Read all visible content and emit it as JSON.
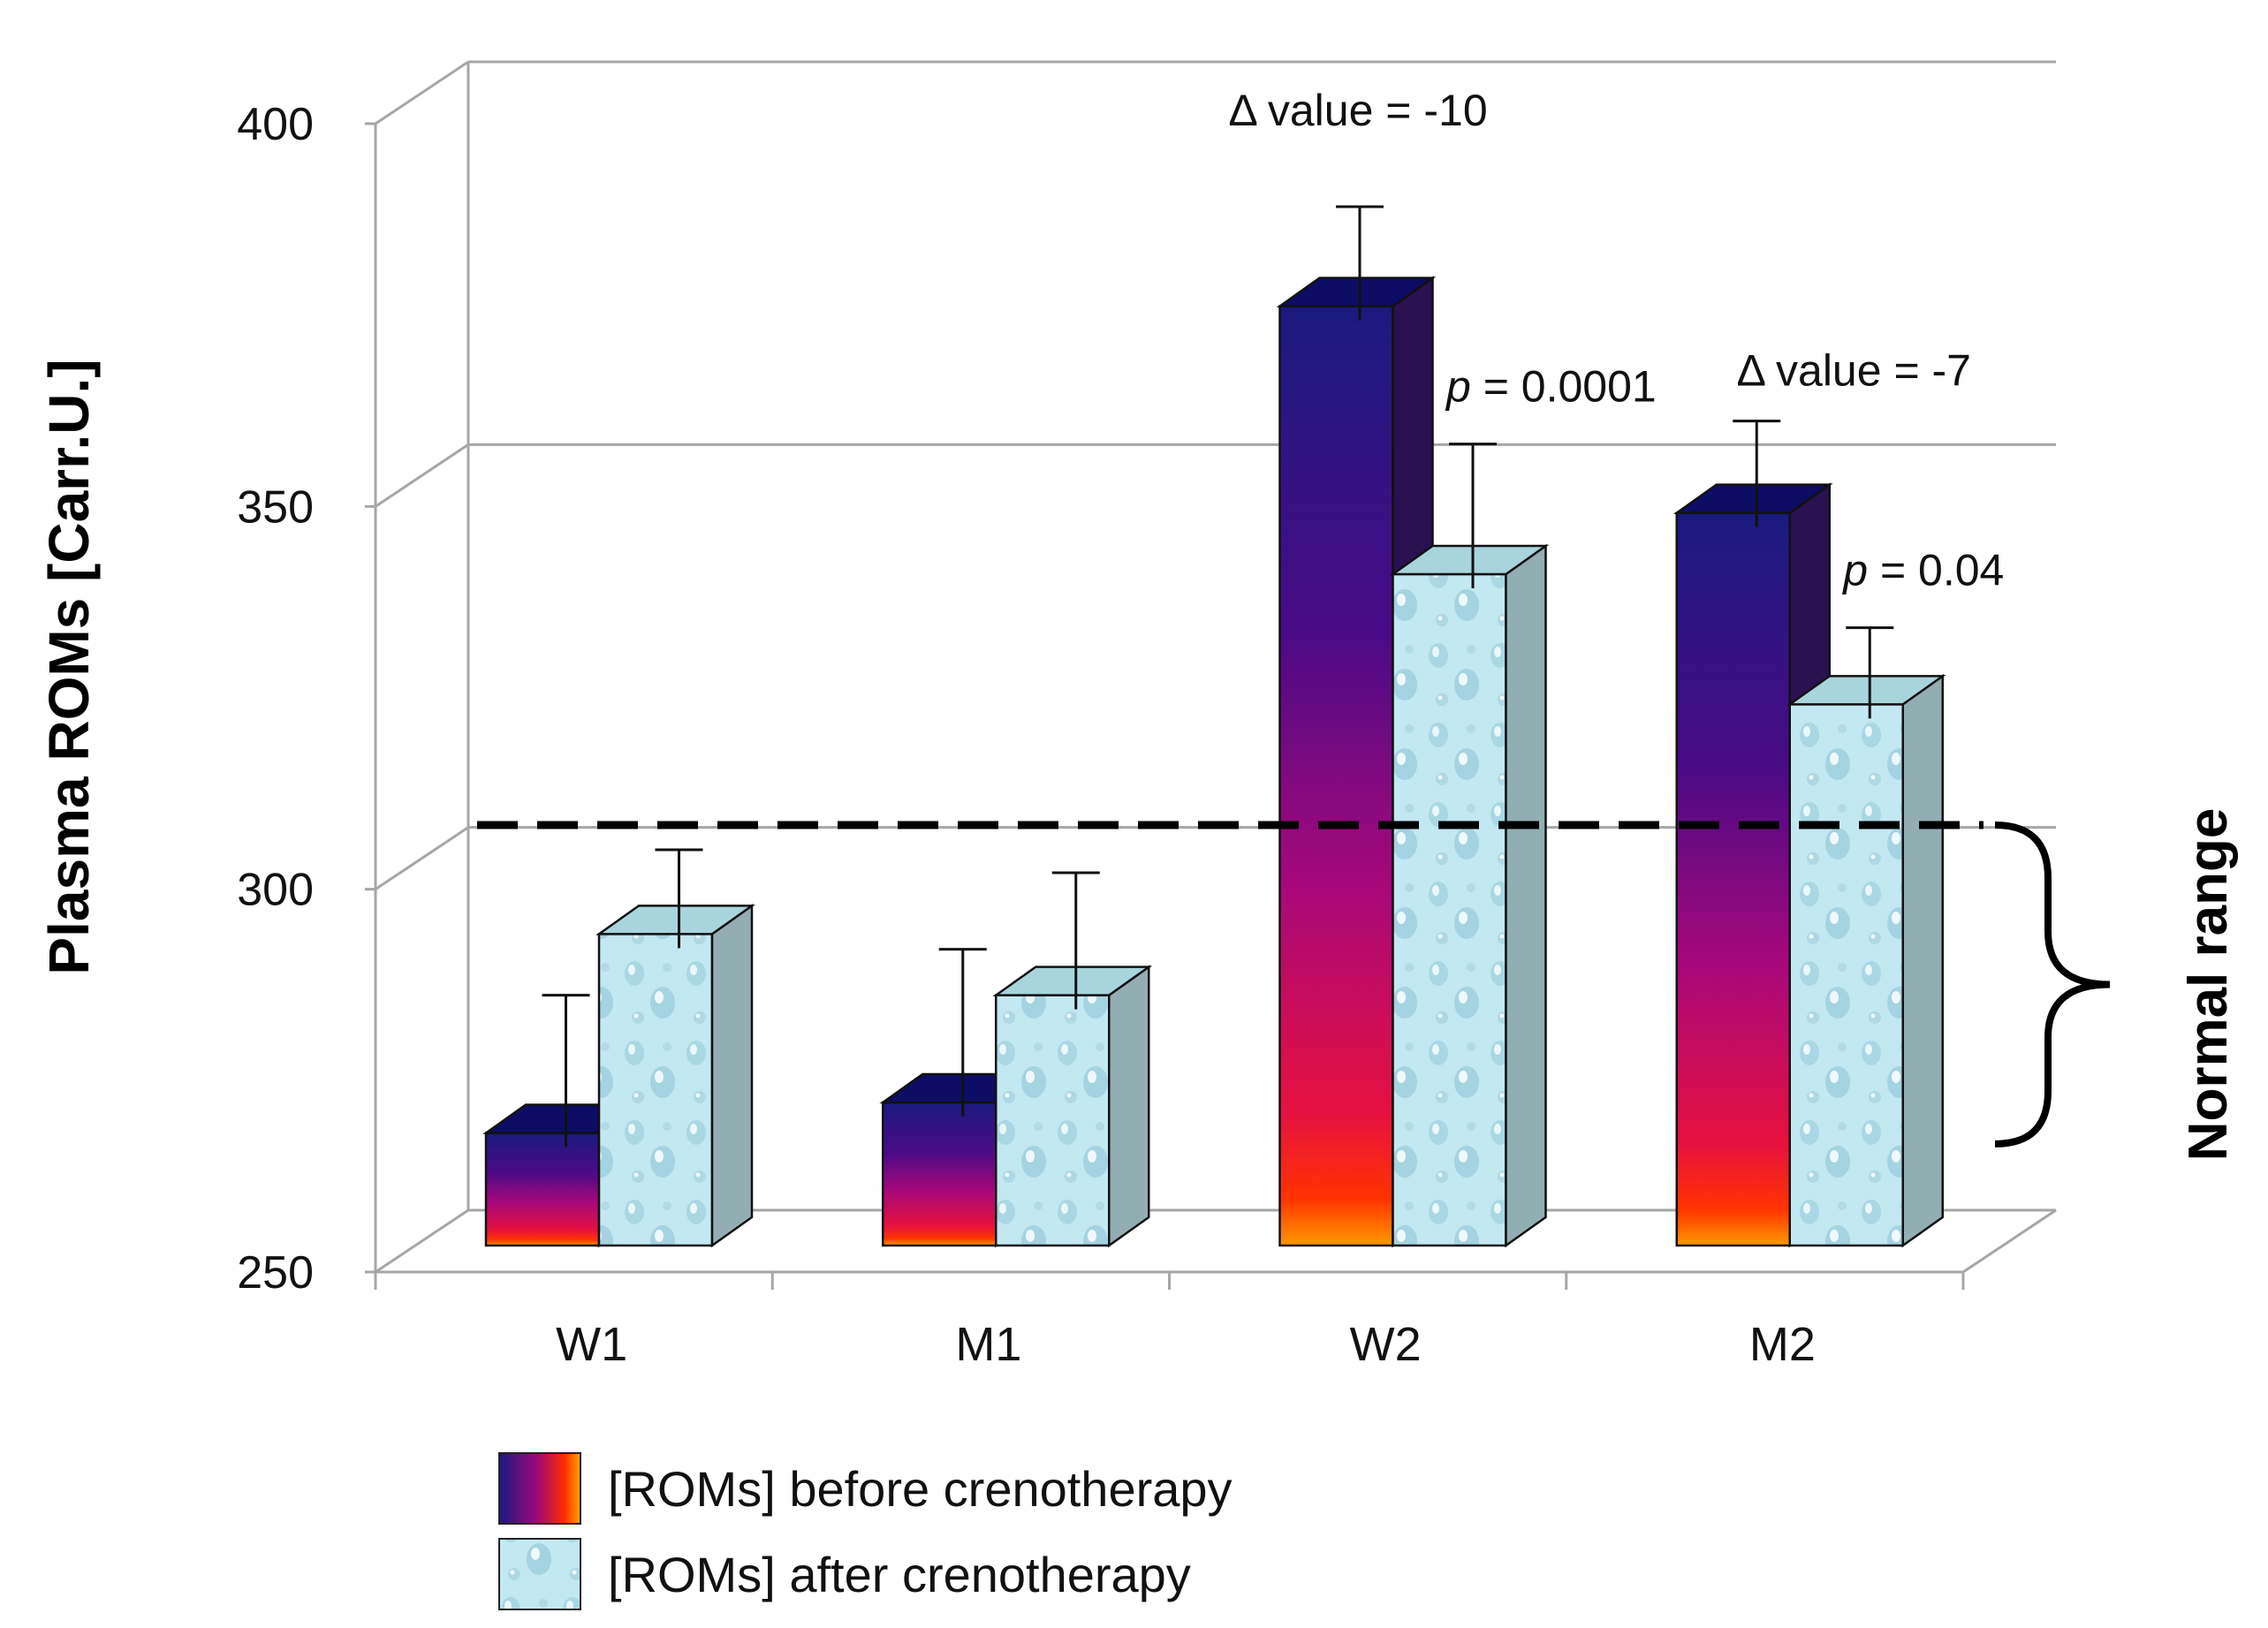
{
  "chart_data": {
    "type": "bar",
    "title": "",
    "xlabel": "",
    "ylabel": "Plasma ROMs [Carr.U.]",
    "ylim": [
      250,
      400
    ],
    "yticks": [
      "250",
      "300",
      "350",
      "400"
    ],
    "grid": true,
    "categories": [
      "W1",
      "M1",
      "W2",
      "M2"
    ],
    "series": [
      {
        "name": "[ROMs] before crenotherapy",
        "values": [
          267,
          271,
          375,
          348
        ],
        "errors": [
          18,
          20,
          13,
          12
        ],
        "colors": {
          "top": "#1a1a7e",
          "mid": "#b0087a",
          "bottom": "#ff2200",
          "base": "#ff9900",
          "side": "#2a1150",
          "cap": "#0d0d66"
        }
      },
      {
        "name": "[ROMs] after crenotherapy",
        "values": [
          293,
          285,
          340,
          323
        ],
        "errors": [
          11,
          16,
          17,
          10
        ],
        "colors": {
          "front": "#bfe6f0",
          "side": "#93aeb3",
          "cap": "#a8d4dc"
        }
      }
    ],
    "annotations": [
      {
        "category": "W2",
        "delta_text": "Δ value = -10",
        "p_label": "p",
        "p_text": " = 0.0001"
      },
      {
        "category": "M2",
        "delta_text": "Δ value = -7",
        "p_label": "p",
        "p_text": " = 0.04"
      }
    ],
    "reference_line": {
      "value": 310,
      "style": "dashed",
      "label": "Normal range"
    },
    "legend_position": "bottom-center"
  }
}
